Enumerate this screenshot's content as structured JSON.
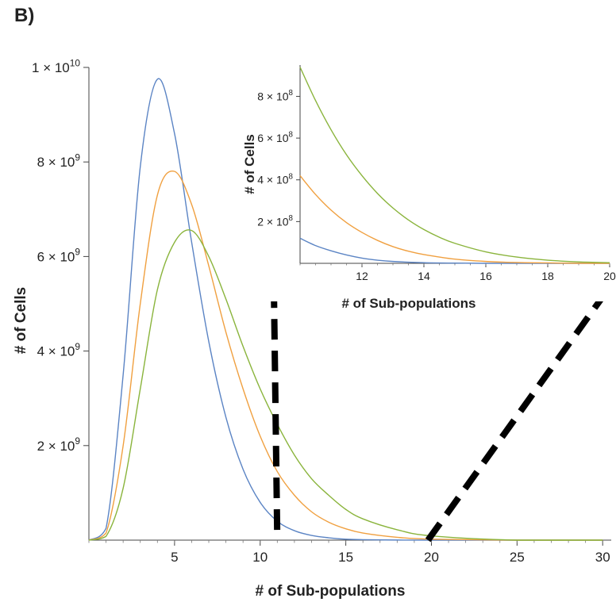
{
  "panel_label": "B)",
  "chart_data": [
    {
      "type": "line",
      "role": "main",
      "xlabel": "# of Sub-populations",
      "ylabel": "# of Cells",
      "xlim": [
        0,
        30.5
      ],
      "ylim": [
        0,
        10000000000
      ],
      "x_ticks": [
        5,
        10,
        15,
        20,
        25,
        30
      ],
      "x_tick_labels": [
        "5",
        "10",
        "15",
        "20",
        "25",
        "30"
      ],
      "y_ticks": [
        2000000000,
        4000000000,
        6000000000,
        8000000000,
        10000000000
      ],
      "y_tick_labels": [
        {
          "base": "2 × 10",
          "exp": "9"
        },
        {
          "base": "4 × 10",
          "exp": "9"
        },
        {
          "base": "6 × 10",
          "exp": "9"
        },
        {
          "base": "8 × 10",
          "exp": "9"
        },
        {
          "base": "1 × 10",
          "exp": "10"
        }
      ],
      "series": [
        {
          "color": "#5b84c4",
          "x": [
            0,
            1,
            2,
            3,
            4,
            5,
            6,
            7,
            8,
            9,
            10,
            11,
            12,
            13,
            14,
            15,
            16,
            18,
            20,
            25,
            30
          ],
          "y": [
            0,
            250000000,
            3500000000,
            7900000000,
            9750000000,
            8600000000,
            6300000000,
            4200000000,
            2600000000,
            1500000000,
            800000000,
            400000000,
            200000000,
            100000000,
            50000000,
            20000000,
            10000000,
            2000000,
            0,
            0,
            0
          ]
        },
        {
          "color": "#f0a040",
          "x": [
            0,
            1,
            2,
            3,
            4,
            5,
            6,
            7,
            8,
            9,
            10,
            11,
            12,
            13,
            14,
            15,
            16,
            18,
            20,
            25,
            30
          ],
          "y": [
            0,
            150000000,
            2000000000,
            5000000000,
            7300000000,
            7800000000,
            7100000000,
            5800000000,
            4400000000,
            3200000000,
            2200000000,
            1450000000,
            950000000,
            600000000,
            380000000,
            240000000,
            150000000,
            60000000,
            20000000,
            0,
            0
          ]
        },
        {
          "color": "#8ab43c",
          "x": [
            0,
            1,
            2,
            3,
            4,
            5,
            6,
            7,
            8,
            9,
            10,
            11,
            12,
            13,
            14,
            15,
            16,
            18,
            20,
            25,
            30
          ],
          "y": [
            0,
            80000000,
            1100000000,
            3200000000,
            5300000000,
            6300000000,
            6550000000,
            6000000000,
            5100000000,
            4100000000,
            3200000000,
            2450000000,
            1800000000,
            1300000000,
            950000000,
            650000000,
            450000000,
            220000000,
            90000000,
            0,
            0
          ]
        }
      ],
      "annotations": [
        {
          "type": "dashed-line",
          "x1": 10.8,
          "y1": 5350000000,
          "x2": 11.0,
          "y2": 0,
          "color": "#000000"
        },
        {
          "type": "dashed-line",
          "x1": 19.8,
          "y1": 0,
          "x2": 30.5,
          "y2": 5400000000,
          "color": "#000000"
        }
      ]
    },
    {
      "type": "line",
      "role": "inset",
      "xlabel": "# of Sub-populations",
      "ylabel": "# of Cells",
      "xlim": [
        10,
        20
      ],
      "ylim": [
        0,
        950000000
      ],
      "x_ticks": [
        12,
        14,
        16,
        18,
        20
      ],
      "x_tick_labels": [
        "12",
        "14",
        "16",
        "18",
        "20"
      ],
      "y_ticks": [
        200000000,
        400000000,
        600000000,
        800000000
      ],
      "y_tick_labels": [
        {
          "base": "2 × 10",
          "exp": "8"
        },
        {
          "base": "4 × 10",
          "exp": "8"
        },
        {
          "base": "6 × 10",
          "exp": "8"
        },
        {
          "base": "8 × 10",
          "exp": "8"
        }
      ],
      "series": [
        {
          "color": "#5b84c4",
          "x": [
            10,
            10.5,
            11,
            11.5,
            12,
            12.5,
            13,
            14,
            15,
            16,
            17,
            18,
            19,
            20
          ],
          "y": [
            120000000,
            85000000,
            60000000,
            40000000,
            25000000,
            15000000,
            9000000,
            3000000,
            1000000,
            0,
            0,
            0,
            0,
            0
          ]
        },
        {
          "color": "#f0a040",
          "x": [
            10,
            10.5,
            11,
            11.5,
            12,
            12.5,
            13,
            13.5,
            14,
            15,
            16,
            17,
            18,
            19,
            20
          ],
          "y": [
            420000000,
            330000000,
            255000000,
            195000000,
            148000000,
            110000000,
            80000000,
            58000000,
            42000000,
            20000000,
            9000000,
            4000000,
            2000000,
            0,
            0
          ]
        },
        {
          "color": "#8ab43c",
          "x": [
            10,
            10.5,
            11,
            11.5,
            12,
            12.5,
            13,
            13.5,
            14,
            14.5,
            15,
            16,
            17,
            18,
            19,
            20
          ],
          "y": [
            940000000,
            780000000,
            640000000,
            520000000,
            420000000,
            335000000,
            265000000,
            208000000,
            162000000,
            125000000,
            96000000,
            55000000,
            30000000,
            15000000,
            7000000,
            3000000
          ]
        }
      ]
    }
  ]
}
